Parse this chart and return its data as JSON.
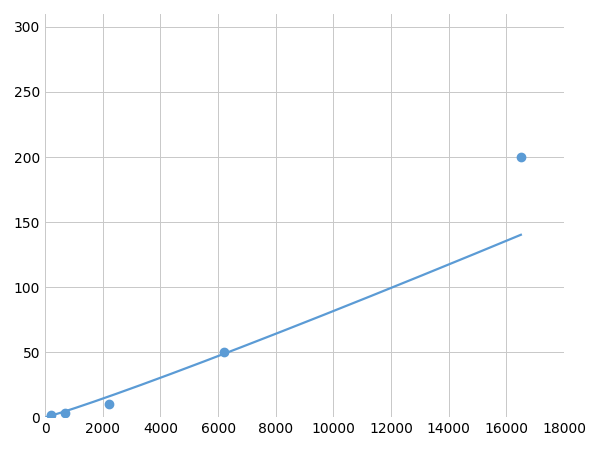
{
  "x_points": [
    200,
    700,
    2200,
    6200,
    16500
  ],
  "y_points": [
    2,
    3,
    10,
    50,
    200
  ],
  "line_color": "#5b9bd5",
  "marker_color": "#5b9bd5",
  "marker_size": 6,
  "linewidth": 1.6,
  "xlim": [
    0,
    18000
  ],
  "ylim": [
    0,
    310
  ],
  "xticks": [
    0,
    2000,
    4000,
    6000,
    8000,
    10000,
    12000,
    14000,
    16000,
    18000
  ],
  "yticks": [
    0,
    50,
    100,
    150,
    200,
    250,
    300
  ],
  "grid_color": "#c8c8c8",
  "background_color": "#ffffff",
  "tick_labelsize": 10,
  "figsize": [
    6.0,
    4.5
  ],
  "dpi": 100
}
